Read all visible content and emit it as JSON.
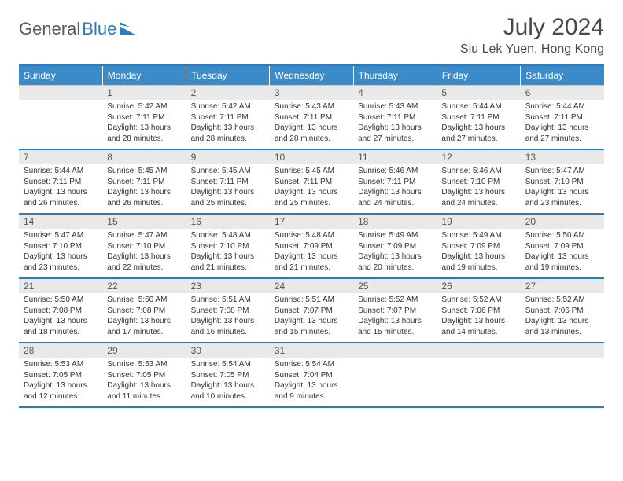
{
  "brand": {
    "name1": "General",
    "name2": "Blue"
  },
  "title": "July 2024",
  "location": "Siu Lek Yuen, Hong Kong",
  "colors": {
    "accent": "#2b7bbf",
    "header_bg": "#3b8bc9",
    "daynum_bg": "#e9e9e9",
    "text": "#333333",
    "muted": "#5a5a5a"
  },
  "weekdays": [
    "Sunday",
    "Monday",
    "Tuesday",
    "Wednesday",
    "Thursday",
    "Friday",
    "Saturday"
  ],
  "weeks": [
    {
      "nums": [
        "",
        "1",
        "2",
        "3",
        "4",
        "5",
        "6"
      ],
      "cells": [
        [],
        [
          "Sunrise: 5:42 AM",
          "Sunset: 7:11 PM",
          "Daylight: 13 hours",
          "and 28 minutes."
        ],
        [
          "Sunrise: 5:42 AM",
          "Sunset: 7:11 PM",
          "Daylight: 13 hours",
          "and 28 minutes."
        ],
        [
          "Sunrise: 5:43 AM",
          "Sunset: 7:11 PM",
          "Daylight: 13 hours",
          "and 28 minutes."
        ],
        [
          "Sunrise: 5:43 AM",
          "Sunset: 7:11 PM",
          "Daylight: 13 hours",
          "and 27 minutes."
        ],
        [
          "Sunrise: 5:44 AM",
          "Sunset: 7:11 PM",
          "Daylight: 13 hours",
          "and 27 minutes."
        ],
        [
          "Sunrise: 5:44 AM",
          "Sunset: 7:11 PM",
          "Daylight: 13 hours",
          "and 27 minutes."
        ]
      ]
    },
    {
      "nums": [
        "7",
        "8",
        "9",
        "10",
        "11",
        "12",
        "13"
      ],
      "cells": [
        [
          "Sunrise: 5:44 AM",
          "Sunset: 7:11 PM",
          "Daylight: 13 hours",
          "and 26 minutes."
        ],
        [
          "Sunrise: 5:45 AM",
          "Sunset: 7:11 PM",
          "Daylight: 13 hours",
          "and 26 minutes."
        ],
        [
          "Sunrise: 5:45 AM",
          "Sunset: 7:11 PM",
          "Daylight: 13 hours",
          "and 25 minutes."
        ],
        [
          "Sunrise: 5:45 AM",
          "Sunset: 7:11 PM",
          "Daylight: 13 hours",
          "and 25 minutes."
        ],
        [
          "Sunrise: 5:46 AM",
          "Sunset: 7:11 PM",
          "Daylight: 13 hours",
          "and 24 minutes."
        ],
        [
          "Sunrise: 5:46 AM",
          "Sunset: 7:10 PM",
          "Daylight: 13 hours",
          "and 24 minutes."
        ],
        [
          "Sunrise: 5:47 AM",
          "Sunset: 7:10 PM",
          "Daylight: 13 hours",
          "and 23 minutes."
        ]
      ]
    },
    {
      "nums": [
        "14",
        "15",
        "16",
        "17",
        "18",
        "19",
        "20"
      ],
      "cells": [
        [
          "Sunrise: 5:47 AM",
          "Sunset: 7:10 PM",
          "Daylight: 13 hours",
          "and 23 minutes."
        ],
        [
          "Sunrise: 5:47 AM",
          "Sunset: 7:10 PM",
          "Daylight: 13 hours",
          "and 22 minutes."
        ],
        [
          "Sunrise: 5:48 AM",
          "Sunset: 7:10 PM",
          "Daylight: 13 hours",
          "and 21 minutes."
        ],
        [
          "Sunrise: 5:48 AM",
          "Sunset: 7:09 PM",
          "Daylight: 13 hours",
          "and 21 minutes."
        ],
        [
          "Sunrise: 5:49 AM",
          "Sunset: 7:09 PM",
          "Daylight: 13 hours",
          "and 20 minutes."
        ],
        [
          "Sunrise: 5:49 AM",
          "Sunset: 7:09 PM",
          "Daylight: 13 hours",
          "and 19 minutes."
        ],
        [
          "Sunrise: 5:50 AM",
          "Sunset: 7:09 PM",
          "Daylight: 13 hours",
          "and 19 minutes."
        ]
      ]
    },
    {
      "nums": [
        "21",
        "22",
        "23",
        "24",
        "25",
        "26",
        "27"
      ],
      "cells": [
        [
          "Sunrise: 5:50 AM",
          "Sunset: 7:08 PM",
          "Daylight: 13 hours",
          "and 18 minutes."
        ],
        [
          "Sunrise: 5:50 AM",
          "Sunset: 7:08 PM",
          "Daylight: 13 hours",
          "and 17 minutes."
        ],
        [
          "Sunrise: 5:51 AM",
          "Sunset: 7:08 PM",
          "Daylight: 13 hours",
          "and 16 minutes."
        ],
        [
          "Sunrise: 5:51 AM",
          "Sunset: 7:07 PM",
          "Daylight: 13 hours",
          "and 15 minutes."
        ],
        [
          "Sunrise: 5:52 AM",
          "Sunset: 7:07 PM",
          "Daylight: 13 hours",
          "and 15 minutes."
        ],
        [
          "Sunrise: 5:52 AM",
          "Sunset: 7:06 PM",
          "Daylight: 13 hours",
          "and 14 minutes."
        ],
        [
          "Sunrise: 5:52 AM",
          "Sunset: 7:06 PM",
          "Daylight: 13 hours",
          "and 13 minutes."
        ]
      ]
    },
    {
      "nums": [
        "28",
        "29",
        "30",
        "31",
        "",
        "",
        ""
      ],
      "cells": [
        [
          "Sunrise: 5:53 AM",
          "Sunset: 7:05 PM",
          "Daylight: 13 hours",
          "and 12 minutes."
        ],
        [
          "Sunrise: 5:53 AM",
          "Sunset: 7:05 PM",
          "Daylight: 13 hours",
          "and 11 minutes."
        ],
        [
          "Sunrise: 5:54 AM",
          "Sunset: 7:05 PM",
          "Daylight: 13 hours",
          "and 10 minutes."
        ],
        [
          "Sunrise: 5:54 AM",
          "Sunset: 7:04 PM",
          "Daylight: 13 hours",
          "and 9 minutes."
        ],
        [],
        [],
        []
      ]
    }
  ]
}
